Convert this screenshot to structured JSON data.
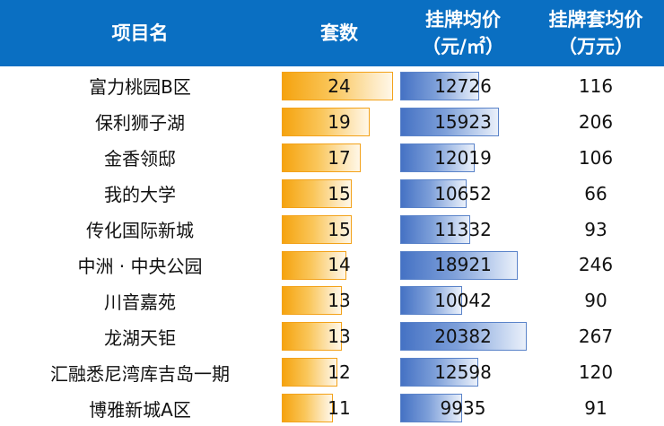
{
  "header": {
    "name": "项目名",
    "count": "套数",
    "price_line1": "挂牌均价",
    "price_line2": "（元/㎡）",
    "total_line1": "挂牌套均价",
    "total_line2": "（万元）"
  },
  "colors": {
    "header_bg": "#0a6fc2",
    "count_bar": "#f5a30f",
    "price_bar": "#4572c4"
  },
  "bar_scale": {
    "count_max": 24,
    "price_max": 20382
  },
  "rows": [
    {
      "name": "富力桃园B区",
      "count": "24",
      "price": "12726",
      "total": "116"
    },
    {
      "name": "保利狮子湖",
      "count": "19",
      "price": "15923",
      "total": "206"
    },
    {
      "name": "金香领邸",
      "count": "17",
      "price": "12019",
      "total": "106"
    },
    {
      "name": "我的大学",
      "count": "15",
      "price": "10652",
      "total": "66"
    },
    {
      "name": "传化国际新城",
      "count": "15",
      "price": "11332",
      "total": "93"
    },
    {
      "name": "中洲 · 中央公园",
      "count": "14",
      "price": "18921",
      "total": "246"
    },
    {
      "name": "川音嘉苑",
      "count": "13",
      "price": "10042",
      "total": "90"
    },
    {
      "name": "龙湖天钜",
      "count": "13",
      "price": "20382",
      "total": "267"
    },
    {
      "name": "汇融悉尼湾库吉岛一期",
      "count": "12",
      "price": "12598",
      "total": "120"
    },
    {
      "name": "博雅新城A区",
      "count": "11",
      "price": "9935",
      "total": "91"
    }
  ]
}
